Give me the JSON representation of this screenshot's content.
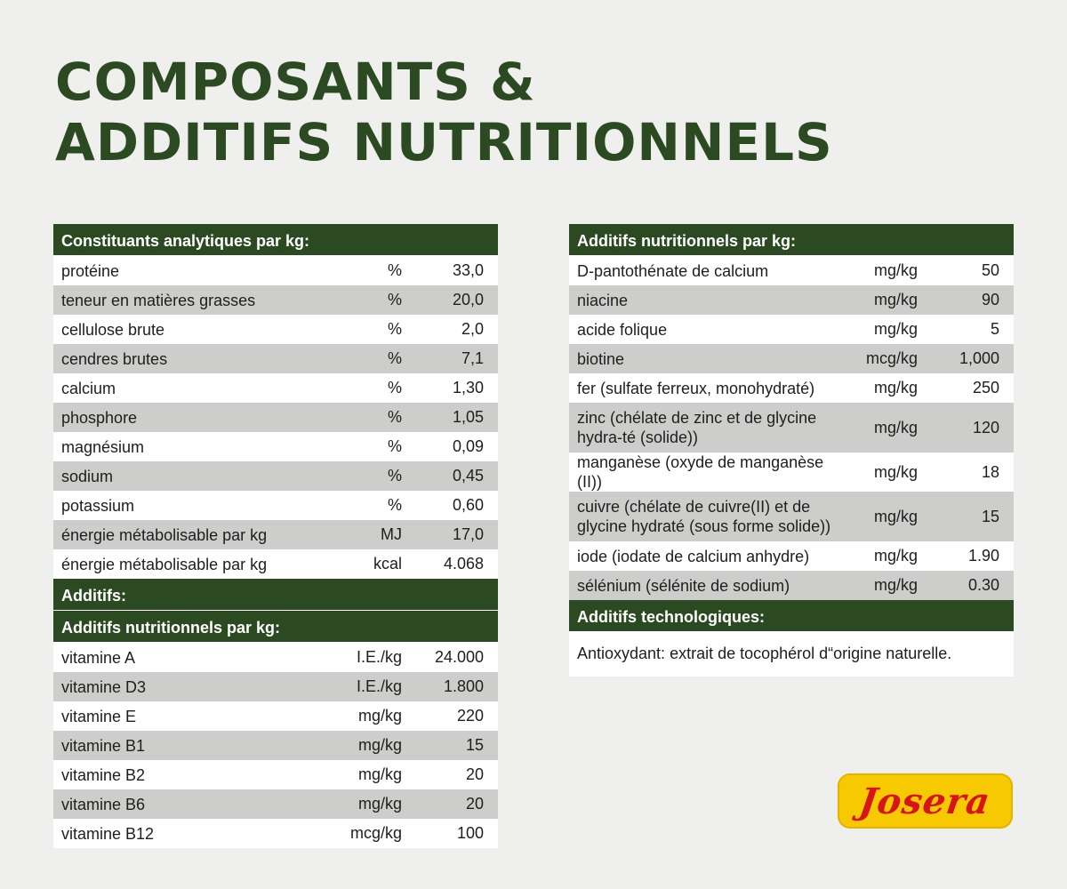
{
  "title": {
    "line1": "COMPOSANTS &",
    "line2": "ADDITIFS NUTRITIONNELS"
  },
  "left": {
    "analytic_header": "Constituants analytiques par kg:",
    "analytic_rows": [
      {
        "name": "protéine",
        "unit": "%",
        "value": "33,0"
      },
      {
        "name": "teneur en matières grasses",
        "unit": "%",
        "value": "20,0"
      },
      {
        "name": "cellulose brute",
        "unit": "%",
        "value": "2,0"
      },
      {
        "name": "cendres brutes",
        "unit": "%",
        "value": "7,1"
      },
      {
        "name": "calcium",
        "unit": "%",
        "value": "1,30"
      },
      {
        "name": "phosphore",
        "unit": "%",
        "value": "1,05"
      },
      {
        "name": "magnésium",
        "unit": "%",
        "value": "0,09"
      },
      {
        "name": "sodium",
        "unit": "%",
        "value": "0,45"
      },
      {
        "name": "potassium",
        "unit": "%",
        "value": "0,60"
      },
      {
        "name": "énergie métabolisable par kg",
        "unit": "MJ",
        "value": "17,0"
      },
      {
        "name": "énergie métabolisable par kg",
        "unit": "kcal",
        "value": "4.068"
      }
    ],
    "additives_header": "Additifs:",
    "nutritional_header": "Additifs nutritionnels par kg:",
    "vitamin_rows": [
      {
        "name": "vitamine A",
        "unit": "I.E./kg",
        "value": "24.000"
      },
      {
        "name": "vitamine D3",
        "unit": "I.E./kg",
        "value": "1.800"
      },
      {
        "name": "vitamine E",
        "unit": "mg/kg",
        "value": "220"
      },
      {
        "name": "vitamine B1",
        "unit": "mg/kg",
        "value": "15"
      },
      {
        "name": "vitamine B2",
        "unit": "mg/kg",
        "value": "20"
      },
      {
        "name": "vitamine B6",
        "unit": "mg/kg",
        "value": "20"
      },
      {
        "name": "vitamine B12",
        "unit": "mcg/kg",
        "value": "100"
      }
    ]
  },
  "right": {
    "nutritional_header": "Additifs nutritionnels par kg:",
    "rows": [
      {
        "name": "D-pantothénate de calcium",
        "unit": "mg/kg",
        "value": "50"
      },
      {
        "name": "niacine",
        "unit": "mg/kg",
        "value": "90"
      },
      {
        "name": "acide folique",
        "unit": "mg/kg",
        "value": "5"
      },
      {
        "name": "biotine",
        "unit": "mcg/kg",
        "value": "1,000"
      },
      {
        "name": "fer (sulfate ferreux, monohydraté)",
        "unit": "mg/kg",
        "value": "250"
      },
      {
        "name": "zinc (chélate de zinc et de glycine hydra-té (solide))",
        "unit": "mg/kg",
        "value": "120"
      },
      {
        "name": "manganèse (oxyde de manganèse (II))",
        "unit": "mg/kg",
        "value": "18"
      },
      {
        "name": "cuivre (chélate de cuivre(II) et de glycine hydraté (sous forme solide))",
        "unit": "mg/kg",
        "value": "15"
      },
      {
        "name": "iode (iodate de calcium anhydre)",
        "unit": "mg/kg",
        "value": "1.90"
      },
      {
        "name": "sélénium (sélénite de sodium)",
        "unit": "mg/kg",
        "value": "0.30"
      }
    ],
    "tech_header": "Additifs technologiques:",
    "tech_note": "Antioxydant: extrait de tocophérol d“origine naturelle."
  },
  "logo": {
    "text": "Josera",
    "bg_color": "#f6c900",
    "text_color": "#d8141b"
  },
  "colors": {
    "header_green": "#2c4a22",
    "row_gray": "#cdcdcb"
  }
}
